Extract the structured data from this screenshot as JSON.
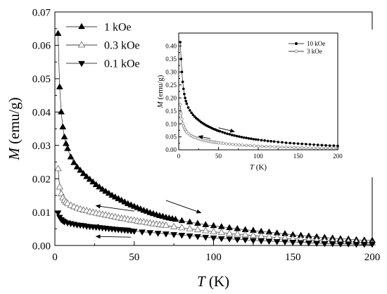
{
  "chart_data": [
    {
      "type": "scatter",
      "title": "",
      "xlabel": {
        "symbol": "T",
        "unit": " (K)"
      },
      "ylabel": {
        "symbol": "M",
        "unit": " (emu/g)"
      },
      "xlim": [
        0,
        200
      ],
      "ylim": [
        0,
        0.07
      ],
      "xticks": [
        "0",
        "50",
        "100",
        "150",
        "200"
      ],
      "yticks": [
        "0.00",
        "0.01",
        "0.02",
        "0.03",
        "0.04",
        "0.05",
        "0.06",
        "0.07"
      ],
      "grid": false,
      "legend_position": "top-left",
      "series": [
        {
          "name": "1 kOe",
          "marker": "triangle-up-filled",
          "x": [
            2,
            3,
            4,
            5,
            6,
            7,
            8,
            10,
            12,
            14,
            16,
            18,
            20,
            22,
            24,
            26,
            28,
            30,
            32,
            34,
            36,
            38,
            40,
            42,
            44,
            46,
            48,
            50,
            52,
            54,
            56,
            58,
            60,
            62,
            64,
            66,
            68,
            70,
            72,
            74,
            76,
            80,
            85,
            90,
            95,
            100,
            105,
            110,
            115,
            120,
            125,
            130,
            135,
            140,
            145,
            150,
            155,
            160,
            165,
            170,
            175,
            180,
            185,
            190,
            195,
            200
          ],
          "y": [
            0.0635,
            0.0475,
            0.04,
            0.0355,
            0.0325,
            0.0305,
            0.029,
            0.0265,
            0.0248,
            0.0235,
            0.0225,
            0.0215,
            0.0206,
            0.0198,
            0.019,
            0.0182,
            0.0175,
            0.0168,
            0.0162,
            0.0156,
            0.015,
            0.0145,
            0.014,
            0.0135,
            0.013,
            0.0125,
            0.0121,
            0.0117,
            0.0113,
            0.0109,
            0.0105,
            0.0102,
            0.0098,
            0.0095,
            0.0092,
            0.0089,
            0.0087,
            0.0084,
            0.0082,
            0.008,
            0.0078,
            0.0074,
            0.007,
            0.0066,
            0.0062,
            0.0059,
            0.0056,
            0.0053,
            0.005,
            0.0047,
            0.0045,
            0.0042,
            0.004,
            0.0037,
            0.0035,
            0.0032,
            0.003,
            0.0028,
            0.0026,
            0.0024,
            0.0022,
            0.002,
            0.0019,
            0.0017,
            0.0016,
            0.0015
          ]
        },
        {
          "name": "0.3 kOe",
          "marker": "triangle-up-open",
          "x": [
            2,
            3,
            4,
            5,
            6,
            7,
            8,
            10,
            12,
            14,
            16,
            18,
            20,
            22,
            24,
            26,
            28,
            30,
            32,
            34,
            36,
            38,
            40,
            42,
            44,
            46,
            48,
            50,
            52,
            54,
            56,
            58,
            60,
            62,
            64,
            66,
            68,
            70,
            75,
            80,
            85,
            90,
            95,
            100,
            105,
            110,
            115,
            120,
            125,
            130,
            135,
            140,
            145,
            150,
            155,
            160,
            165,
            170,
            175,
            180,
            185,
            190,
            195,
            200
          ],
          "y": [
            0.023,
            0.0175,
            0.0155,
            0.0143,
            0.0135,
            0.013,
            0.0126,
            0.012,
            0.0116,
            0.0112,
            0.0109,
            0.0106,
            0.0104,
            0.0101,
            0.0099,
            0.0097,
            0.0095,
            0.0093,
            0.0091,
            0.0089,
            0.0087,
            0.0085,
            0.0083,
            0.0081,
            0.008,
            0.0078,
            0.0076,
            0.0075,
            0.0073,
            0.0071,
            0.007,
            0.0068,
            0.0067,
            0.0065,
            0.0064,
            0.0062,
            0.0061,
            0.006,
            0.0056,
            0.0053,
            0.005,
            0.0047,
            0.0044,
            0.0041,
            0.0039,
            0.0036,
            0.0034,
            0.0032,
            0.003,
            0.0028,
            0.0026,
            0.0024,
            0.0022,
            0.002,
            0.0019,
            0.0017,
            0.0016,
            0.0014,
            0.0013,
            0.0012,
            0.0011,
            0.001,
            0.0009,
            0.0008
          ]
        },
        {
          "name": "0.1 kOe",
          "marker": "triangle-down-filled",
          "x": [
            2,
            3,
            4,
            5,
            6,
            8,
            10,
            12,
            14,
            16,
            18,
            20,
            22,
            24,
            26,
            28,
            30,
            32,
            34,
            36,
            38,
            40,
            42,
            44,
            46,
            48,
            50,
            55,
            60,
            65,
            70,
            75,
            80,
            85,
            90,
            95,
            100,
            105,
            110,
            115,
            120,
            125,
            130,
            135,
            140,
            145,
            150,
            155,
            160,
            165,
            170,
            175,
            180,
            185,
            190,
            195,
            200
          ],
          "y": [
            0.0098,
            0.0085,
            0.0078,
            0.0074,
            0.0071,
            0.0068,
            0.0066,
            0.0064,
            0.0062,
            0.0061,
            0.006,
            0.0058,
            0.0057,
            0.0056,
            0.0055,
            0.0054,
            0.0053,
            0.0052,
            0.0051,
            0.005,
            0.0049,
            0.0048,
            0.0047,
            0.0046,
            0.0045,
            0.0044,
            0.0043,
            0.0041,
            0.0039,
            0.0037,
            0.0035,
            0.0033,
            0.0031,
            0.0029,
            0.0027,
            0.0025,
            0.0023,
            0.0021,
            0.002,
            0.0018,
            0.0017,
            0.0015,
            0.0014,
            0.0013,
            0.0012,
            0.0011,
            0.001,
            0.0009,
            0.0008,
            0.0007,
            0.0006,
            0.0006,
            0.0005,
            0.0005,
            0.0004,
            0.0004,
            0.0004
          ]
        }
      ],
      "annotations": [
        {
          "type": "arrow",
          "direction": "toward higher T",
          "from": [
            70,
            0.0135
          ],
          "to": [
            92,
            0.0098
          ]
        },
        {
          "type": "arrow",
          "direction": "toward lower T",
          "from": [
            50,
            0.0103
          ],
          "to": [
            26,
            0.0119
          ]
        },
        {
          "type": "arrow",
          "direction": "toward lower T",
          "from": [
            48,
            0.0052
          ],
          "to": [
            25,
            0.0059
          ]
        },
        {
          "type": "arrow",
          "direction": "toward lower T",
          "from": [
            48,
            0.0025
          ],
          "to": [
            26,
            0.0027
          ]
        }
      ]
    },
    {
      "type": "scatter",
      "title": "",
      "inset": true,
      "xlabel": {
        "symbol": "T",
        "unit": " (K)"
      },
      "ylabel": {
        "symbol": "M",
        "unit": " (emu/g)"
      },
      "xlim": [
        0,
        200
      ],
      "ylim": [
        0,
        0.45
      ],
      "xticks": [
        "0",
        "50",
        "100",
        "150",
        "200"
      ],
      "yticks": [
        "0.00",
        "0.05",
        "0.10",
        "0.15",
        "0.20",
        "0.25",
        "0.30",
        "0.35",
        "0.40"
      ],
      "grid": false,
      "legend_position": "top-right",
      "series": [
        {
          "name": "10 kOe",
          "marker": "circle-filled",
          "x": [
            2,
            3,
            4,
            5,
            6,
            7,
            8,
            9,
            10,
            12,
            14,
            16,
            18,
            20,
            22,
            24,
            26,
            28,
            30,
            32,
            34,
            36,
            38,
            40,
            42,
            44,
            46,
            48,
            50,
            52,
            55,
            58,
            61,
            64,
            67,
            70,
            73,
            76,
            79,
            82,
            85,
            88,
            91,
            94,
            97,
            100,
            104,
            108,
            112,
            116,
            120,
            125,
            130,
            135,
            140,
            145,
            150,
            155,
            160,
            165,
            170,
            175,
            180,
            185,
            190,
            195,
            200
          ],
          "y": [
            0.415,
            0.35,
            0.3,
            0.262,
            0.235,
            0.215,
            0.2,
            0.188,
            0.178,
            0.163,
            0.152,
            0.143,
            0.135,
            0.128,
            0.122,
            0.117,
            0.112,
            0.107,
            0.103,
            0.099,
            0.095,
            0.092,
            0.089,
            0.086,
            0.083,
            0.08,
            0.078,
            0.075,
            0.073,
            0.071,
            0.068,
            0.065,
            0.062,
            0.06,
            0.057,
            0.055,
            0.053,
            0.051,
            0.049,
            0.047,
            0.046,
            0.044,
            0.043,
            0.041,
            0.04,
            0.039,
            0.037,
            0.036,
            0.034,
            0.033,
            0.032,
            0.03,
            0.029,
            0.027,
            0.026,
            0.025,
            0.024,
            0.023,
            0.022,
            0.021,
            0.02,
            0.019,
            0.018,
            0.017,
            0.016,
            0.016,
            0.015
          ]
        },
        {
          "name": "3 kOe",
          "marker": "circle-open",
          "x": [
            2,
            3,
            4,
            5,
            6,
            7,
            8,
            9,
            10,
            12,
            14,
            16,
            18,
            20,
            22,
            24,
            26,
            28,
            30,
            32,
            34,
            36,
            38,
            40,
            42,
            44,
            46,
            48,
            50,
            53,
            56,
            60,
            64,
            68,
            72,
            76,
            80,
            85,
            90,
            95,
            100,
            105,
            110,
            115,
            120,
            125,
            130,
            135,
            140,
            145,
            150,
            155,
            160,
            165,
            170,
            175,
            180,
            185,
            190,
            195,
            200
          ],
          "y": [
            0.175,
            0.14,
            0.118,
            0.102,
            0.092,
            0.084,
            0.078,
            0.073,
            0.069,
            0.063,
            0.058,
            0.054,
            0.051,
            0.048,
            0.046,
            0.044,
            0.042,
            0.04,
            0.038,
            0.037,
            0.035,
            0.034,
            0.033,
            0.032,
            0.031,
            0.03,
            0.029,
            0.028,
            0.027,
            0.026,
            0.025,
            0.023,
            0.022,
            0.021,
            0.02,
            0.019,
            0.018,
            0.017,
            0.016,
            0.015,
            0.014,
            0.013,
            0.0125,
            0.012,
            0.0115,
            0.011,
            0.0105,
            0.01,
            0.0095,
            0.009,
            0.0085,
            0.008,
            0.0078,
            0.0075,
            0.0072,
            0.007,
            0.0068,
            0.0065,
            0.0062,
            0.006,
            0.0058
          ]
        }
      ],
      "annotations": [
        {
          "type": "arrow",
          "direction": "toward higher T",
          "from": [
            50,
            0.085
          ],
          "to": [
            70,
            0.07
          ]
        },
        {
          "type": "arrow",
          "direction": "toward lower T",
          "from": [
            40,
            0.043
          ],
          "to": [
            25,
            0.052
          ]
        }
      ]
    }
  ]
}
